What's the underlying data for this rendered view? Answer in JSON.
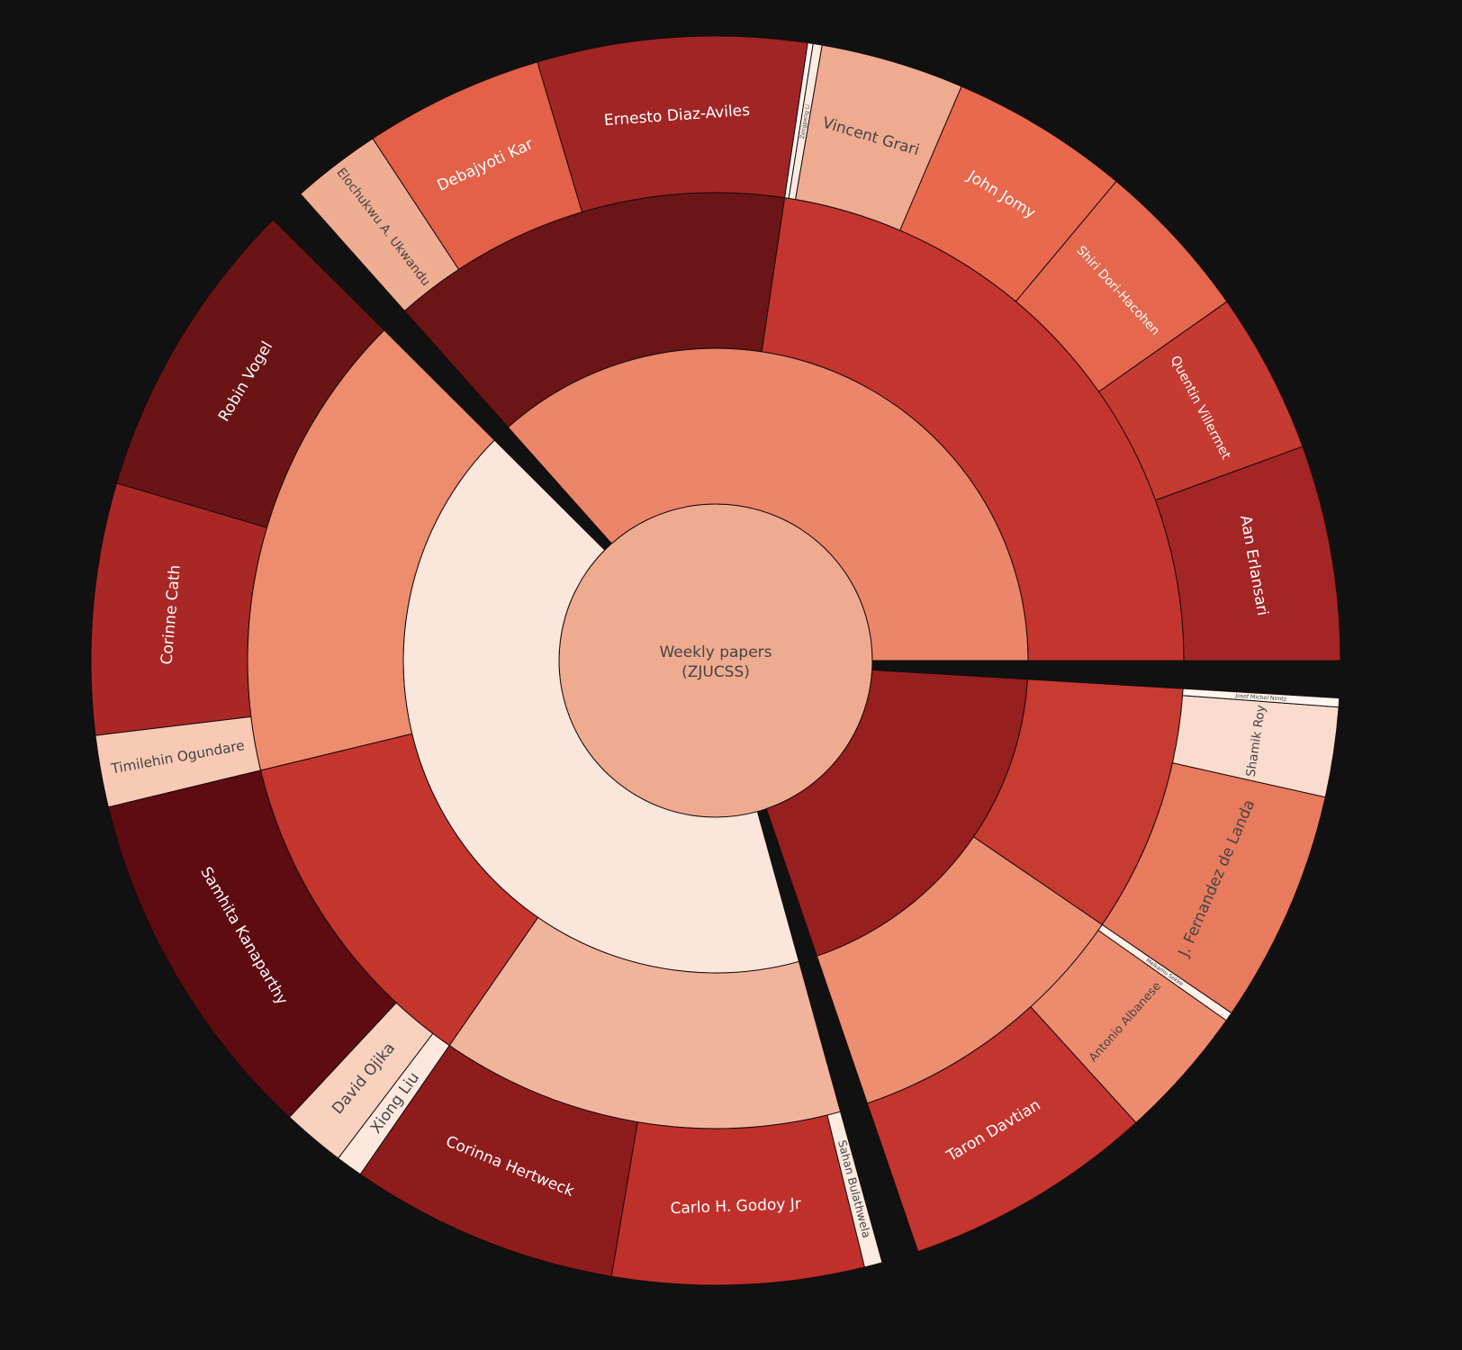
{
  "background": "#111111",
  "chart_data": {
    "type": "sunburst",
    "root": {
      "label": "Weekly papers\n(ZJUCSS)",
      "color": "#efab90",
      "children": [
        {
          "label": "",
          "color": "#eb866a",
          "value": 90,
          "children": [
            {
              "label": "",
              "color": "#c5352f",
              "value": 53,
              "children": [
                {
                  "label": "Aan Erlansari",
                  "value": 12,
                  "color": "#a32526"
                },
                {
                  "label": "Quentin Villermet",
                  "value": 9,
                  "color": "#c53a31"
                },
                {
                  "label": "Shiri Dori-Hacohen",
                  "value": 9,
                  "color": "#e5684e"
                },
                {
                  "label": "John Jomy",
                  "value": 10,
                  "color": "#e8694e"
                },
                {
                  "label": "Vincent Grari",
                  "value": 8,
                  "color": "#efab90"
                },
                {
                  "label": "Zengpeng Li",
                  "value": 0.5,
                  "color": "#fcebe2"
                },
                {
                  "label": "",
                  "value": 0.3,
                  "color": "#fff5f0"
                }
              ]
            },
            {
              "label": "",
              "color": "#6c1517",
              "value": 37,
              "children": [
                {
                  "label": "Ernesto Diaz-Aviles",
                  "value": 15,
                  "color": "#a22526"
                },
                {
                  "label": "Debajyoti Kar",
                  "value": 10,
                  "color": "#e36049"
                },
                {
                  "label": "Elochukwu A. Ukwandu",
                  "value": 5,
                  "color": "#efad92"
                }
              ]
            }
          ]
        },
        {
          "label": "",
          "color": "#fae6db",
          "value": 95,
          "children": [
            {
              "label": "",
              "color": "#ee8c6e",
              "value": 37,
              "children": [
                {
                  "label": "Robin Vogel",
                  "value": 17,
                  "color": "#6b1416"
                },
                {
                  "label": "Corinne Cath",
                  "value": 14,
                  "color": "#a92826"
                },
                {
                  "label": "Timilehin Ogundare",
                  "value": 4,
                  "color": "#f8cab5"
                }
              ]
            },
            {
              "label": "",
              "color": "#c4352e",
              "value": 28,
              "children": [
                {
                  "label": "Samhita Kanaparthy",
                  "value": 20,
                  "color": "#5e0b12"
                },
                {
                  "label": "David Ojika",
                  "value": 3.5,
                  "color": "#f8d1bf"
                },
                {
                  "label": "Xiong Liu",
                  "value": 1.5,
                  "color": "#fde8de"
                }
              ]
            },
            {
              "label": "",
              "color": "#f0b49c",
              "value": 30,
              "children": [
                {
                  "label": "Corinna Hertweck",
                  "value": 15,
                  "color": "#8f1c1d"
                },
                {
                  "label": "Carlo H. Godoy Jr",
                  "value": 14,
                  "color": "#c0302b"
                },
                {
                  "label": "Sahan Bulathwela",
                  "value": 1,
                  "color": "#fdeae0"
                }
              ]
            }
          ]
        },
        {
          "label": "",
          "color": "#981f1f",
          "value": 54,
          "children": [
            {
              "label": "",
              "color": "#ed8e70",
              "value": 23,
              "children": [
                {
                  "label": "Taron Davtian",
                  "value": 14,
                  "color": "#c4352f"
                },
                {
                  "label": "Antonio Albanese",
                  "value": 7.5,
                  "color": "#ec8b6d"
                },
                {
                  "label": "Melkamu Sekke",
                  "value": 0.5,
                  "color": "#fff0e8"
                }
              ]
            },
            {
              "label": "",
              "color": "#c73b31",
              "value": 29,
              "children": [
                {
                  "label": "J. Fernandez de Landa",
                  "value": 13,
                  "color": "#e87a5e"
                },
                {
                  "label": "Shamik Roy",
                  "value": 5,
                  "color": "#f9dccd"
                },
                {
                  "label": "Josef Michel Nimtz",
                  "value": 0.5,
                  "color": "#fff5ef"
                }
              ]
            }
          ]
        }
      ]
    }
  }
}
